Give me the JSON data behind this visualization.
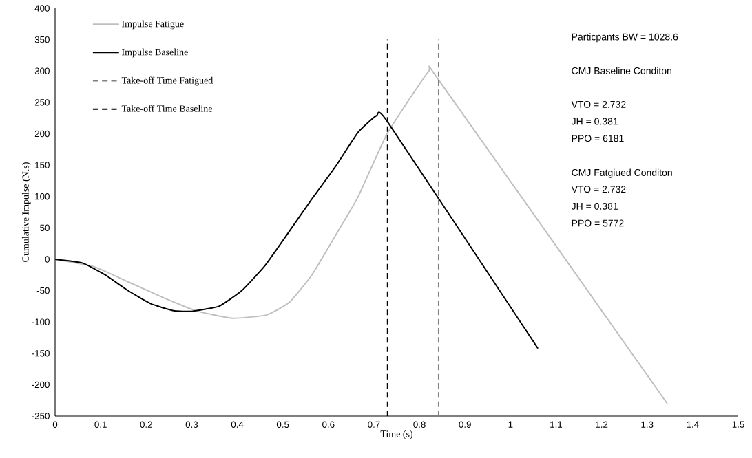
{
  "chart_data": {
    "type": "line",
    "xlabel": "Time (s)",
    "ylabel": "Cumulative Impulse (N.s)",
    "xlim": [
      0,
      1.5
    ],
    "ylim": [
      -250,
      400
    ],
    "xticks": [
      0,
      0.1,
      0.2,
      0.3,
      0.4,
      0.5,
      0.6,
      0.7,
      0.8,
      0.9,
      1,
      1.1,
      1.2,
      1.3,
      1.4,
      1.5
    ],
    "yticks": [
      -250,
      -200,
      -150,
      -100,
      -50,
      0,
      50,
      100,
      150,
      200,
      250,
      300,
      350,
      400
    ],
    "grid": false,
    "legend": "top left",
    "marker": "none",
    "series": [
      {
        "name": "Impulse Fatigue",
        "color": "#bfbfbf",
        "line_style": "solid",
        "x": [
          0,
          0.086,
          0.16,
          0.237,
          0.313,
          0.389,
          0.464,
          0.514,
          0.564,
          0.615,
          0.665,
          0.729,
          0.82,
          0.844,
          1.344
        ],
        "values": [
          0,
          -12,
          -36,
          -61,
          -83,
          -94,
          -89,
          -69,
          -25,
          37,
          99,
          200,
          299,
          284,
          -230
        ]
      },
      {
        "name": "Impulse Baseline",
        "color": "#000000",
        "line_style": "solid",
        "x": [
          0,
          0.06,
          0.11,
          0.16,
          0.21,
          0.26,
          0.3,
          0.36,
          0.41,
          0.46,
          0.51,
          0.56,
          0.615,
          0.665,
          0.706,
          0.73,
          1.06
        ],
        "values": [
          0,
          -6,
          -25,
          -50,
          -71,
          -82,
          -83,
          -75,
          -50,
          -11,
          40,
          92,
          147,
          202,
          229,
          219,
          -142
        ]
      },
      {
        "name": "Take-off Time Fatigued",
        "color": "#808080",
        "line_style": "dashed",
        "x": [
          0.842,
          0.842
        ],
        "values": [
          -250,
          350
        ]
      },
      {
        "name": "Take-off Time Baseline",
        "color": "#000000",
        "line_style": "dashed",
        "x": [
          0.73,
          0.73
        ],
        "values": [
          -250,
          350
        ]
      }
    ],
    "annotations": [
      "Particpants BW = 1028.6",
      "CMJ Baseline Conditon",
      "VTO = 2.732",
      "JH = 0.381",
      "PPO = 6181",
      "CMJ Fatgiued Conditon",
      "VTO = 2.732",
      "JH = 0.381",
      "PPO = 5772"
    ]
  }
}
